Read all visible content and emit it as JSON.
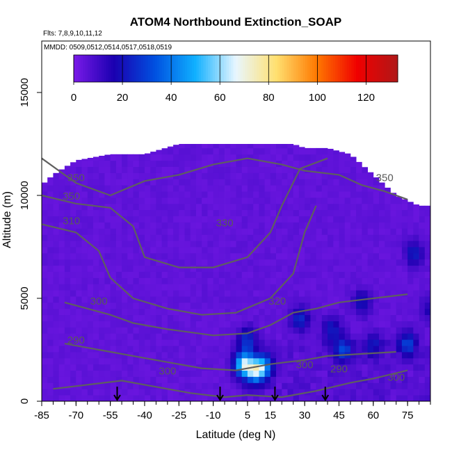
{
  "chart_data": {
    "type": "heatmap",
    "title": "ATOM4 Northbound Extinction_SOAP",
    "flights_text": "Flts: 7,8,9,10,11,12",
    "dates_text": "MMDD: 0509,0512,0514,0517,0518,0519",
    "xlabel": "Latitude (deg N)",
    "ylabel": "Altitude (m)",
    "xlim": [
      -85,
      85
    ],
    "ylim": [
      0,
      17500
    ],
    "x_ticks": [
      "-85",
      "-70",
      "-55",
      "-40",
      "-25",
      "-10",
      "5",
      "15",
      "30",
      "45",
      "60",
      "75"
    ],
    "x_tick_values": [
      -85,
      -70,
      -55,
      -40,
      -25,
      -10,
      5,
      15,
      30,
      45,
      60,
      75
    ],
    "y_ticks": [
      "0",
      "5000",
      "10000",
      "15000"
    ],
    "y_tick_values": [
      0,
      5000,
      10000,
      15000
    ],
    "colorbar": {
      "min": 0,
      "max": 133,
      "ticks": [
        "0",
        "20",
        "40",
        "60",
        "80",
        "100",
        "120"
      ],
      "tick_values": [
        0,
        20,
        40,
        60,
        80,
        100,
        120
      ],
      "colors": [
        "#7a1ae8",
        "#1a00b0",
        "#0050e0",
        "#10b0ff",
        "#e8f6ff",
        "#ffe070",
        "#ff7800",
        "#f00000",
        "#b01818"
      ]
    },
    "background_value": 3,
    "data_envelope": [
      [
        -85,
        0,
        10500
      ],
      [
        -80,
        0,
        11000
      ],
      [
        -70,
        0,
        11700
      ],
      [
        -55,
        0,
        12000
      ],
      [
        -40,
        0,
        12000
      ],
      [
        -25,
        0,
        12500
      ],
      [
        -10,
        0,
        12500
      ],
      [
        5,
        0,
        12500
      ],
      [
        15,
        0,
        12500
      ],
      [
        25,
        0,
        12500
      ],
      [
        30,
        0,
        12300
      ],
      [
        40,
        0,
        12300
      ],
      [
        50,
        0,
        12000
      ],
      [
        60,
        0,
        11000
      ],
      [
        70,
        0,
        10000
      ],
      [
        80,
        0,
        9500
      ],
      [
        85,
        0,
        9500
      ]
    ],
    "hotspots": [
      {
        "lat": 3,
        "alt": 1800,
        "value": 52
      },
      {
        "lat": 8,
        "alt": 1500,
        "value": 45
      },
      {
        "lat": 12,
        "alt": 1700,
        "value": 38
      },
      {
        "lat": 5,
        "alt": 3000,
        "value": 22
      },
      {
        "lat": 28,
        "alt": 4000,
        "value": 20
      },
      {
        "lat": 42,
        "alt": 3500,
        "value": 18
      },
      {
        "lat": 47,
        "alt": 2500,
        "value": 25
      },
      {
        "lat": 55,
        "alt": 4800,
        "value": 16
      },
      {
        "lat": 60,
        "alt": 2700,
        "value": 15
      },
      {
        "lat": 75,
        "alt": 2800,
        "value": 24
      },
      {
        "lat": 78,
        "alt": 7200,
        "value": 18
      },
      {
        "lat": 85,
        "alt": 4500,
        "value": 12
      }
    ],
    "contours": [
      {
        "label": "350",
        "points": [
          [
            -85,
            11800
          ],
          [
            -70,
            10600
          ],
          [
            -55,
            10000
          ],
          [
            -40,
            10700
          ],
          [
            -25,
            11000
          ],
          [
            -10,
            11500
          ],
          [
            5,
            11800
          ],
          [
            20,
            11500
          ],
          [
            30,
            11200
          ],
          [
            45,
            11000
          ],
          [
            55,
            10500
          ],
          [
            65,
            10200
          ],
          [
            75,
            9800
          ]
        ]
      },
      {
        "label": "330",
        "points": [
          [
            -85,
            10000
          ],
          [
            -70,
            9600
          ],
          [
            -55,
            9400
          ],
          [
            -45,
            8500
          ],
          [
            -40,
            7000
          ],
          [
            -25,
            6500
          ],
          [
            -10,
            6500
          ],
          [
            5,
            7000
          ],
          [
            15,
            8200
          ],
          [
            20,
            9500
          ],
          [
            28,
            11300
          ],
          [
            40,
            11800
          ]
        ]
      },
      {
        "label": "310",
        "points": [
          [
            -85,
            8600
          ],
          [
            -70,
            8200
          ],
          [
            -60,
            7300
          ],
          [
            -55,
            6000
          ],
          [
            -45,
            5000
          ],
          [
            -30,
            4500
          ],
          [
            -15,
            4200
          ],
          [
            0,
            4300
          ],
          [
            15,
            5000
          ],
          [
            25,
            6200
          ],
          [
            30,
            8200
          ],
          [
            35,
            9500
          ]
        ]
      },
      {
        "label": "320",
        "points": [
          [
            -75,
            4800
          ],
          [
            -65,
            4500
          ],
          [
            -55,
            4200
          ],
          [
            -45,
            3800
          ],
          [
            -30,
            3500
          ],
          [
            -10,
            3200
          ],
          [
            5,
            3300
          ],
          [
            15,
            3700
          ],
          [
            25,
            4300
          ],
          [
            35,
            4500
          ],
          [
            45,
            4800
          ],
          [
            60,
            5000
          ],
          [
            75,
            5200
          ]
        ]
      },
      {
        "label": "300",
        "points": [
          [
            -75,
            2800
          ],
          [
            -60,
            2500
          ],
          [
            -45,
            2200
          ],
          [
            -30,
            1900
          ],
          [
            -15,
            1600
          ],
          [
            0,
            1500
          ],
          [
            10,
            1700
          ],
          [
            15,
            1800
          ],
          [
            22,
            1900
          ],
          [
            30,
            2000
          ],
          [
            40,
            2200
          ],
          [
            55,
            2300
          ],
          [
            70,
            2400
          ]
        ]
      },
      {
        "label": "290",
        "points": [
          [
            -80,
            600
          ],
          [
            -65,
            800
          ],
          [
            -50,
            1000
          ],
          [
            -35,
            700
          ],
          [
            -20,
            400
          ],
          [
            -5,
            200
          ],
          [
            5,
            300
          ],
          [
            20,
            200
          ],
          [
            35,
            500
          ],
          [
            50,
            900
          ],
          [
            60,
            1100
          ],
          [
            75,
            1500
          ]
        ]
      }
    ],
    "contour_labels": [
      {
        "text": "350",
        "lat": -70,
        "alt": 10700
      },
      {
        "text": "350",
        "lat": -72,
        "alt": 9800
      },
      {
        "text": "310",
        "lat": -72,
        "alt": 8600
      },
      {
        "text": "330",
        "lat": -5,
        "alt": 8500
      },
      {
        "text": "350",
        "lat": 65,
        "alt": 10700
      },
      {
        "text": "320",
        "lat": 18,
        "alt": 4700
      },
      {
        "text": "300",
        "lat": -60,
        "alt": 4700
      },
      {
        "text": "290",
        "lat": -70,
        "alt": 2800
      },
      {
        "text": "300",
        "lat": -30,
        "alt": 1300
      },
      {
        "text": "300",
        "lat": 30,
        "alt": 1600
      },
      {
        "text": "290",
        "lat": 45,
        "alt": 1400
      },
      {
        "text": "300",
        "lat": 70,
        "alt": 1000
      }
    ],
    "arrows_lat": [
      -52,
      -7,
      17,
      39
    ],
    "grid": false,
    "legend": "none"
  }
}
